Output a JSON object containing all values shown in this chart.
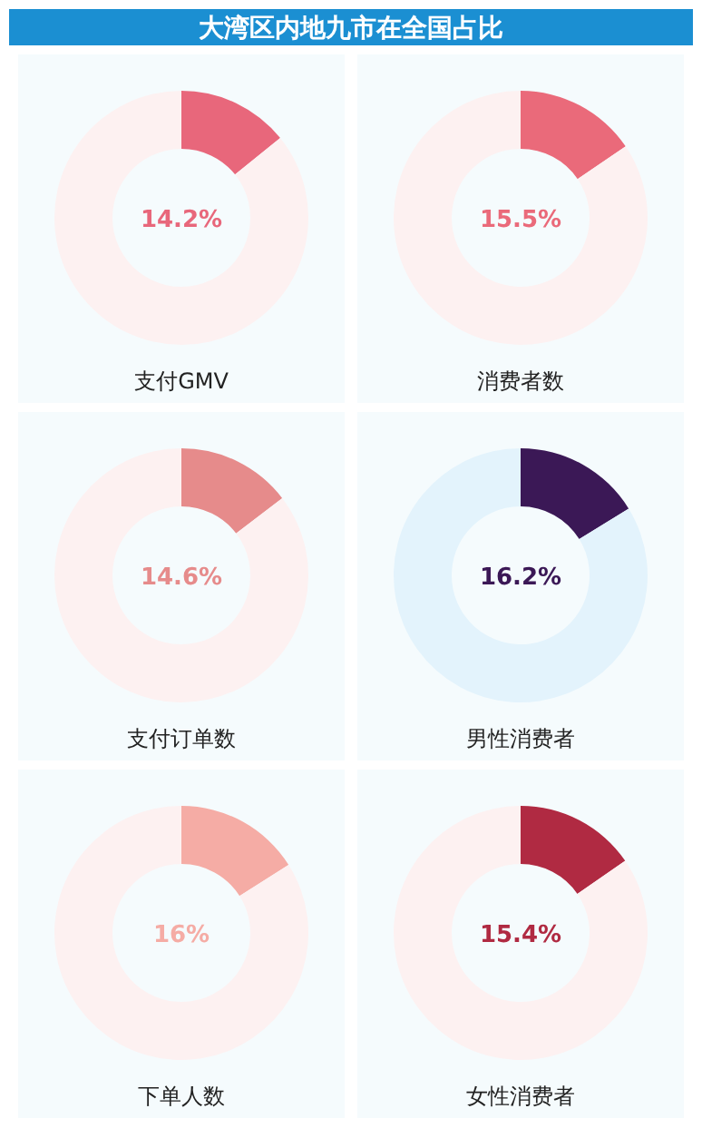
{
  "chart_data": [
    {
      "type": "other",
      "title": "大湾区内地九市在全国占比"
    },
    {
      "type": "donut",
      "title": "支付GMV",
      "categories": [
        null,
        null
      ],
      "values": [
        14.2,
        85.8
      ],
      "colors": [
        "#e8677b",
        "#fdf1f1"
      ],
      "annotations": [
        "14.2%"
      ]
    },
    {
      "type": "donut",
      "title": "消费者数",
      "categories": [
        null,
        null
      ],
      "values": [
        15.5,
        84.5
      ],
      "colors": [
        "#ea6a7a",
        "#fdf1f1"
      ],
      "annotations": [
        "15.5%"
      ]
    },
    {
      "type": "donut",
      "title": "支付订单数",
      "categories": [
        null,
        null
      ],
      "values": [
        14.6,
        85.4
      ],
      "colors": [
        "#e68b8b",
        "#fdf1f1"
      ],
      "annotations": [
        "14.6%"
      ]
    },
    {
      "type": "donut",
      "title": "男性消费者",
      "categories": [
        null,
        null
      ],
      "values": [
        16.2,
        83.8
      ],
      "colors": [
        "#3b1856",
        "#e3f3fc"
      ],
      "annotations": [
        "16.2%"
      ]
    },
    {
      "type": "donut",
      "title": "下单人数",
      "categories": [
        null,
        null
      ],
      "values": [
        16,
        84
      ],
      "colors": [
        "#f5aca5",
        "#fdf1f1"
      ],
      "annotations": [
        "16%"
      ]
    },
    {
      "type": "donut",
      "title": "女性消费者",
      "categories": [
        null,
        null
      ],
      "values": [
        15.4,
        84.6
      ],
      "colors": [
        "#b02a42",
        "#fdf1f1"
      ],
      "annotations": [
        "15.4%"
      ]
    }
  ]
}
